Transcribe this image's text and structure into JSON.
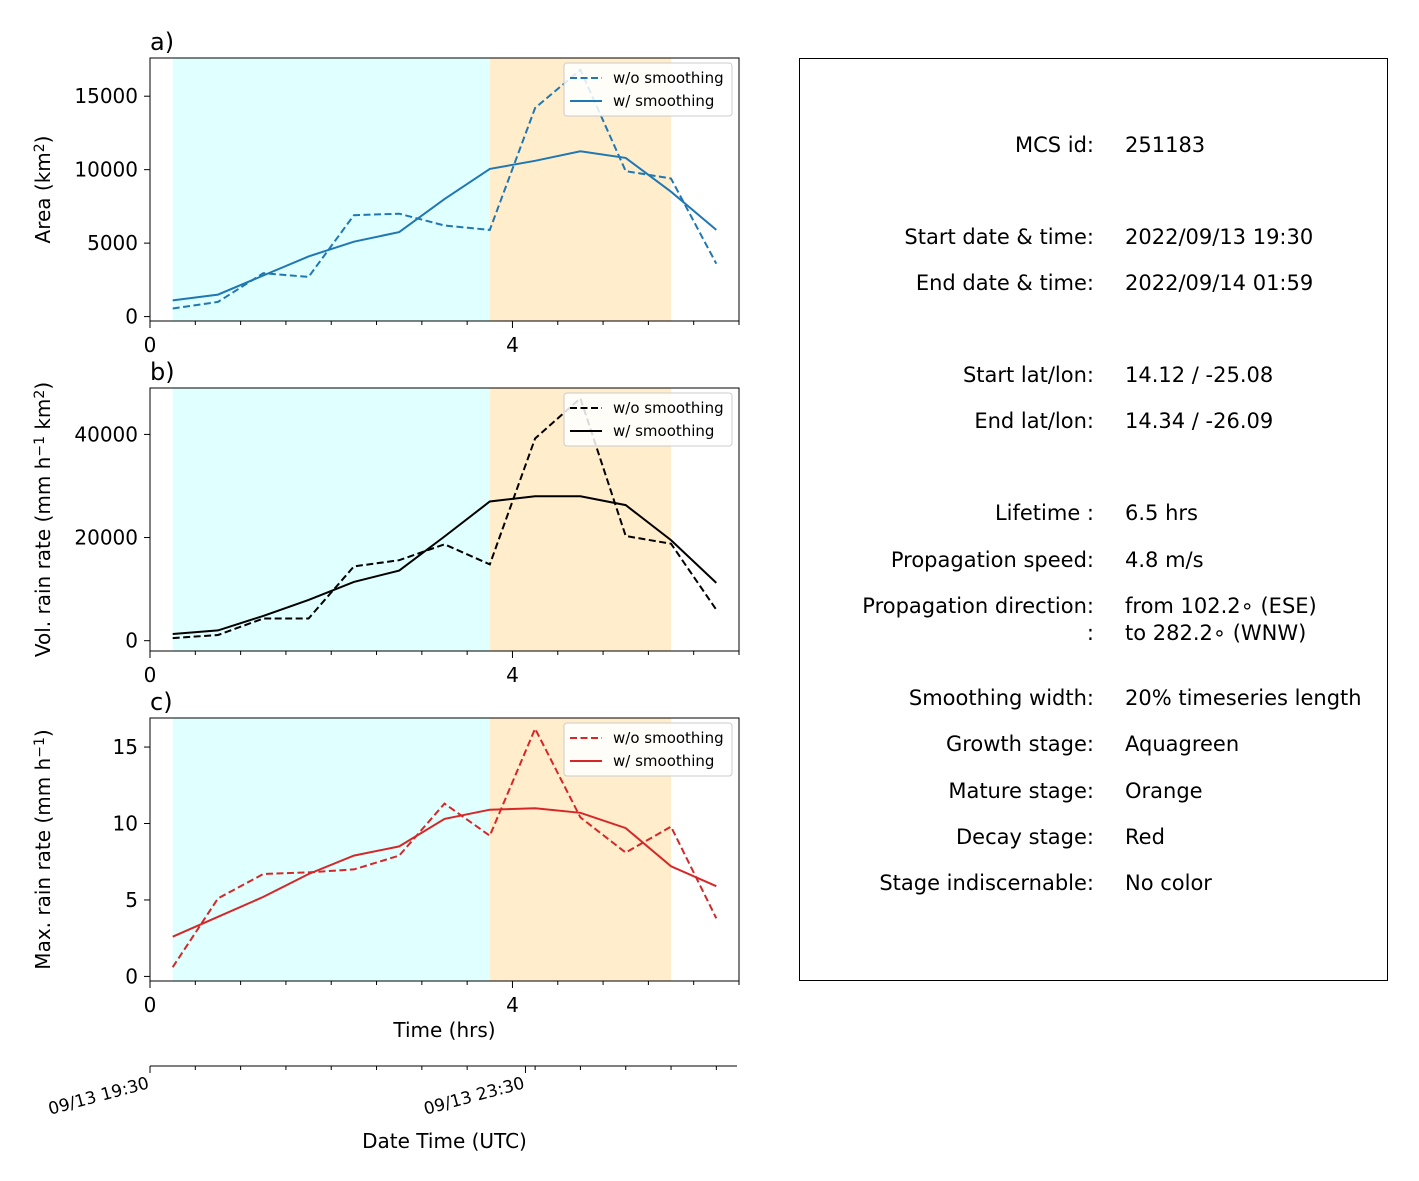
{
  "chart_data": [
    {
      "type": "line",
      "panel_label": "a)",
      "ylabel_main": "Area  (km",
      "ylabel_sup": "2",
      "ylabel_end": ")",
      "ylim": [
        -300,
        17600
      ],
      "yticks": [
        0,
        5000,
        10000,
        15000
      ],
      "color": "#1f77b4",
      "series": [
        {
          "name": "w/o smoothing",
          "style": "dashed",
          "x": [
            0.25,
            0.75,
            1.25,
            1.75,
            2.25,
            2.75,
            3.25,
            3.75,
            4.25,
            4.75,
            5.25,
            5.75,
            6.25
          ],
          "values": [
            550,
            1000,
            2950,
            2700,
            6900,
            7000,
            6200,
            5900,
            14200,
            16800,
            9900,
            9400,
            3600
          ]
        },
        {
          "name": "w/ smoothing",
          "style": "solid",
          "x": [
            0.25,
            0.75,
            1.25,
            1.75,
            2.25,
            2.75,
            3.25,
            3.75,
            4.25,
            4.75,
            5.25,
            5.75,
            6.25
          ],
          "values": [
            1100,
            1500,
            2800,
            4100,
            5100,
            5750,
            8000,
            10050,
            10600,
            11250,
            10800,
            8500,
            5900
          ]
        }
      ]
    },
    {
      "type": "line",
      "panel_label": "b)",
      "ylabel_main": "Vol. rain rate (mm h",
      "ylabel_sup": "−1",
      "ylabel_mid": " km",
      "ylabel_sup2": "2",
      "ylabel_end": ")",
      "ylim": [
        -2000,
        49000
      ],
      "yticks": [
        0,
        20000,
        40000
      ],
      "color": "#000000",
      "series": [
        {
          "name": "w/o smoothing",
          "style": "dashed",
          "x": [
            0.25,
            0.75,
            1.25,
            1.75,
            2.25,
            2.75,
            3.25,
            3.75,
            4.25,
            4.75,
            5.25,
            5.75,
            6.25
          ],
          "values": [
            500,
            1100,
            4300,
            4300,
            14400,
            15600,
            18700,
            14800,
            39200,
            47000,
            20300,
            18800,
            6000
          ]
        },
        {
          "name": "w/ smoothing",
          "style": "solid",
          "x": [
            0.25,
            0.75,
            1.25,
            1.75,
            2.25,
            2.75,
            3.25,
            3.75,
            4.25,
            4.75,
            5.25,
            5.75,
            6.25
          ],
          "values": [
            1300,
            2000,
            4800,
            7900,
            11400,
            13600,
            20200,
            27000,
            28000,
            28000,
            26300,
            19500,
            11200
          ]
        }
      ]
    },
    {
      "type": "line",
      "panel_label": "c)",
      "ylabel_main": "Max. rain rate  (mm h",
      "ylabel_sup": "−1",
      "ylabel_end": ")",
      "ylim": [
        -0.3,
        16.9
      ],
      "yticks": [
        0,
        5,
        10,
        15
      ],
      "color": "#d62728",
      "series": [
        {
          "name": "w/o smoothing",
          "style": "dashed",
          "x": [
            0.25,
            0.75,
            1.25,
            1.75,
            2.25,
            2.75,
            3.25,
            3.75,
            4.25,
            4.75,
            5.25,
            5.75,
            6.25
          ],
          "values": [
            0.6,
            5.1,
            6.7,
            6.8,
            7.0,
            7.9,
            11.3,
            9.2,
            16.2,
            10.4,
            8.1,
            9.8,
            3.8
          ]
        },
        {
          "name": "w/ smoothing",
          "style": "solid",
          "x": [
            0.25,
            0.75,
            1.25,
            1.75,
            2.25,
            2.75,
            3.25,
            3.75,
            4.25,
            4.75,
            5.25,
            5.75,
            6.25
          ],
          "values": [
            2.6,
            3.9,
            5.2,
            6.7,
            7.9,
            8.5,
            10.3,
            10.9,
            11.0,
            10.7,
            9.7,
            7.2,
            5.9
          ]
        }
      ]
    }
  ],
  "shared_axes": {
    "xlim": [
      0,
      6.5
    ],
    "xticks_labeled": [
      0,
      4
    ],
    "xticks_minor": [
      0.5,
      1,
      1.5,
      2,
      2.5,
      3,
      3.5,
      4.5,
      5,
      5.5,
      6,
      6.5
    ],
    "xlabel": "Time (hrs)",
    "stages": [
      {
        "name": "growth",
        "from": 0.25,
        "to": 3.75,
        "color": "#e0ffff"
      },
      {
        "name": "mature",
        "from": 3.75,
        "to": 5.75,
        "color": "#ffedcc"
      }
    ]
  },
  "datetime_axis": {
    "label": "Date Time (UTC)",
    "tick_labels": [
      {
        "x": 0,
        "text": "09/13 19:30"
      },
      {
        "x": 4,
        "text": "09/13 23:30"
      }
    ],
    "minor_ticks": [
      0.5,
      1,
      1.5,
      2,
      2.5,
      3,
      3.5,
      4.25,
      4.75,
      5.25,
      5.75,
      6.25
    ]
  },
  "info": {
    "rows": [
      {
        "label": "MCS id:",
        "value": "251183"
      },
      {
        "label": "Start date & time:",
        "value": "2022/09/13 19:30"
      },
      {
        "label": "End date & time:",
        "value": "2022/09/14 01:59"
      },
      {
        "label": "Start lat/lon:",
        "value": "14.12 / -25.08"
      },
      {
        "label": "End lat/lon:",
        "value": "14.34 / -26.09"
      },
      {
        "label": "Lifetime :",
        "value": "6.5 hrs"
      },
      {
        "label": "Propagation speed:",
        "value": "4.8 m/s"
      },
      {
        "label": "Propagation direction:",
        "value": "from 102.2∘ (ESE)"
      },
      {
        "label": ":",
        "value": "to   282.2∘ (WNW)"
      },
      {
        "label": "Smoothing width:",
        "value": "20% timeseries length"
      },
      {
        "label": "Growth stage:",
        "value": "Aquagreen"
      },
      {
        "label": "Mature stage:",
        "value": "Orange"
      },
      {
        "label": "Decay stage:",
        "value": "Red"
      },
      {
        "label": "Stage indiscernable:",
        "value": "No color"
      }
    ]
  }
}
